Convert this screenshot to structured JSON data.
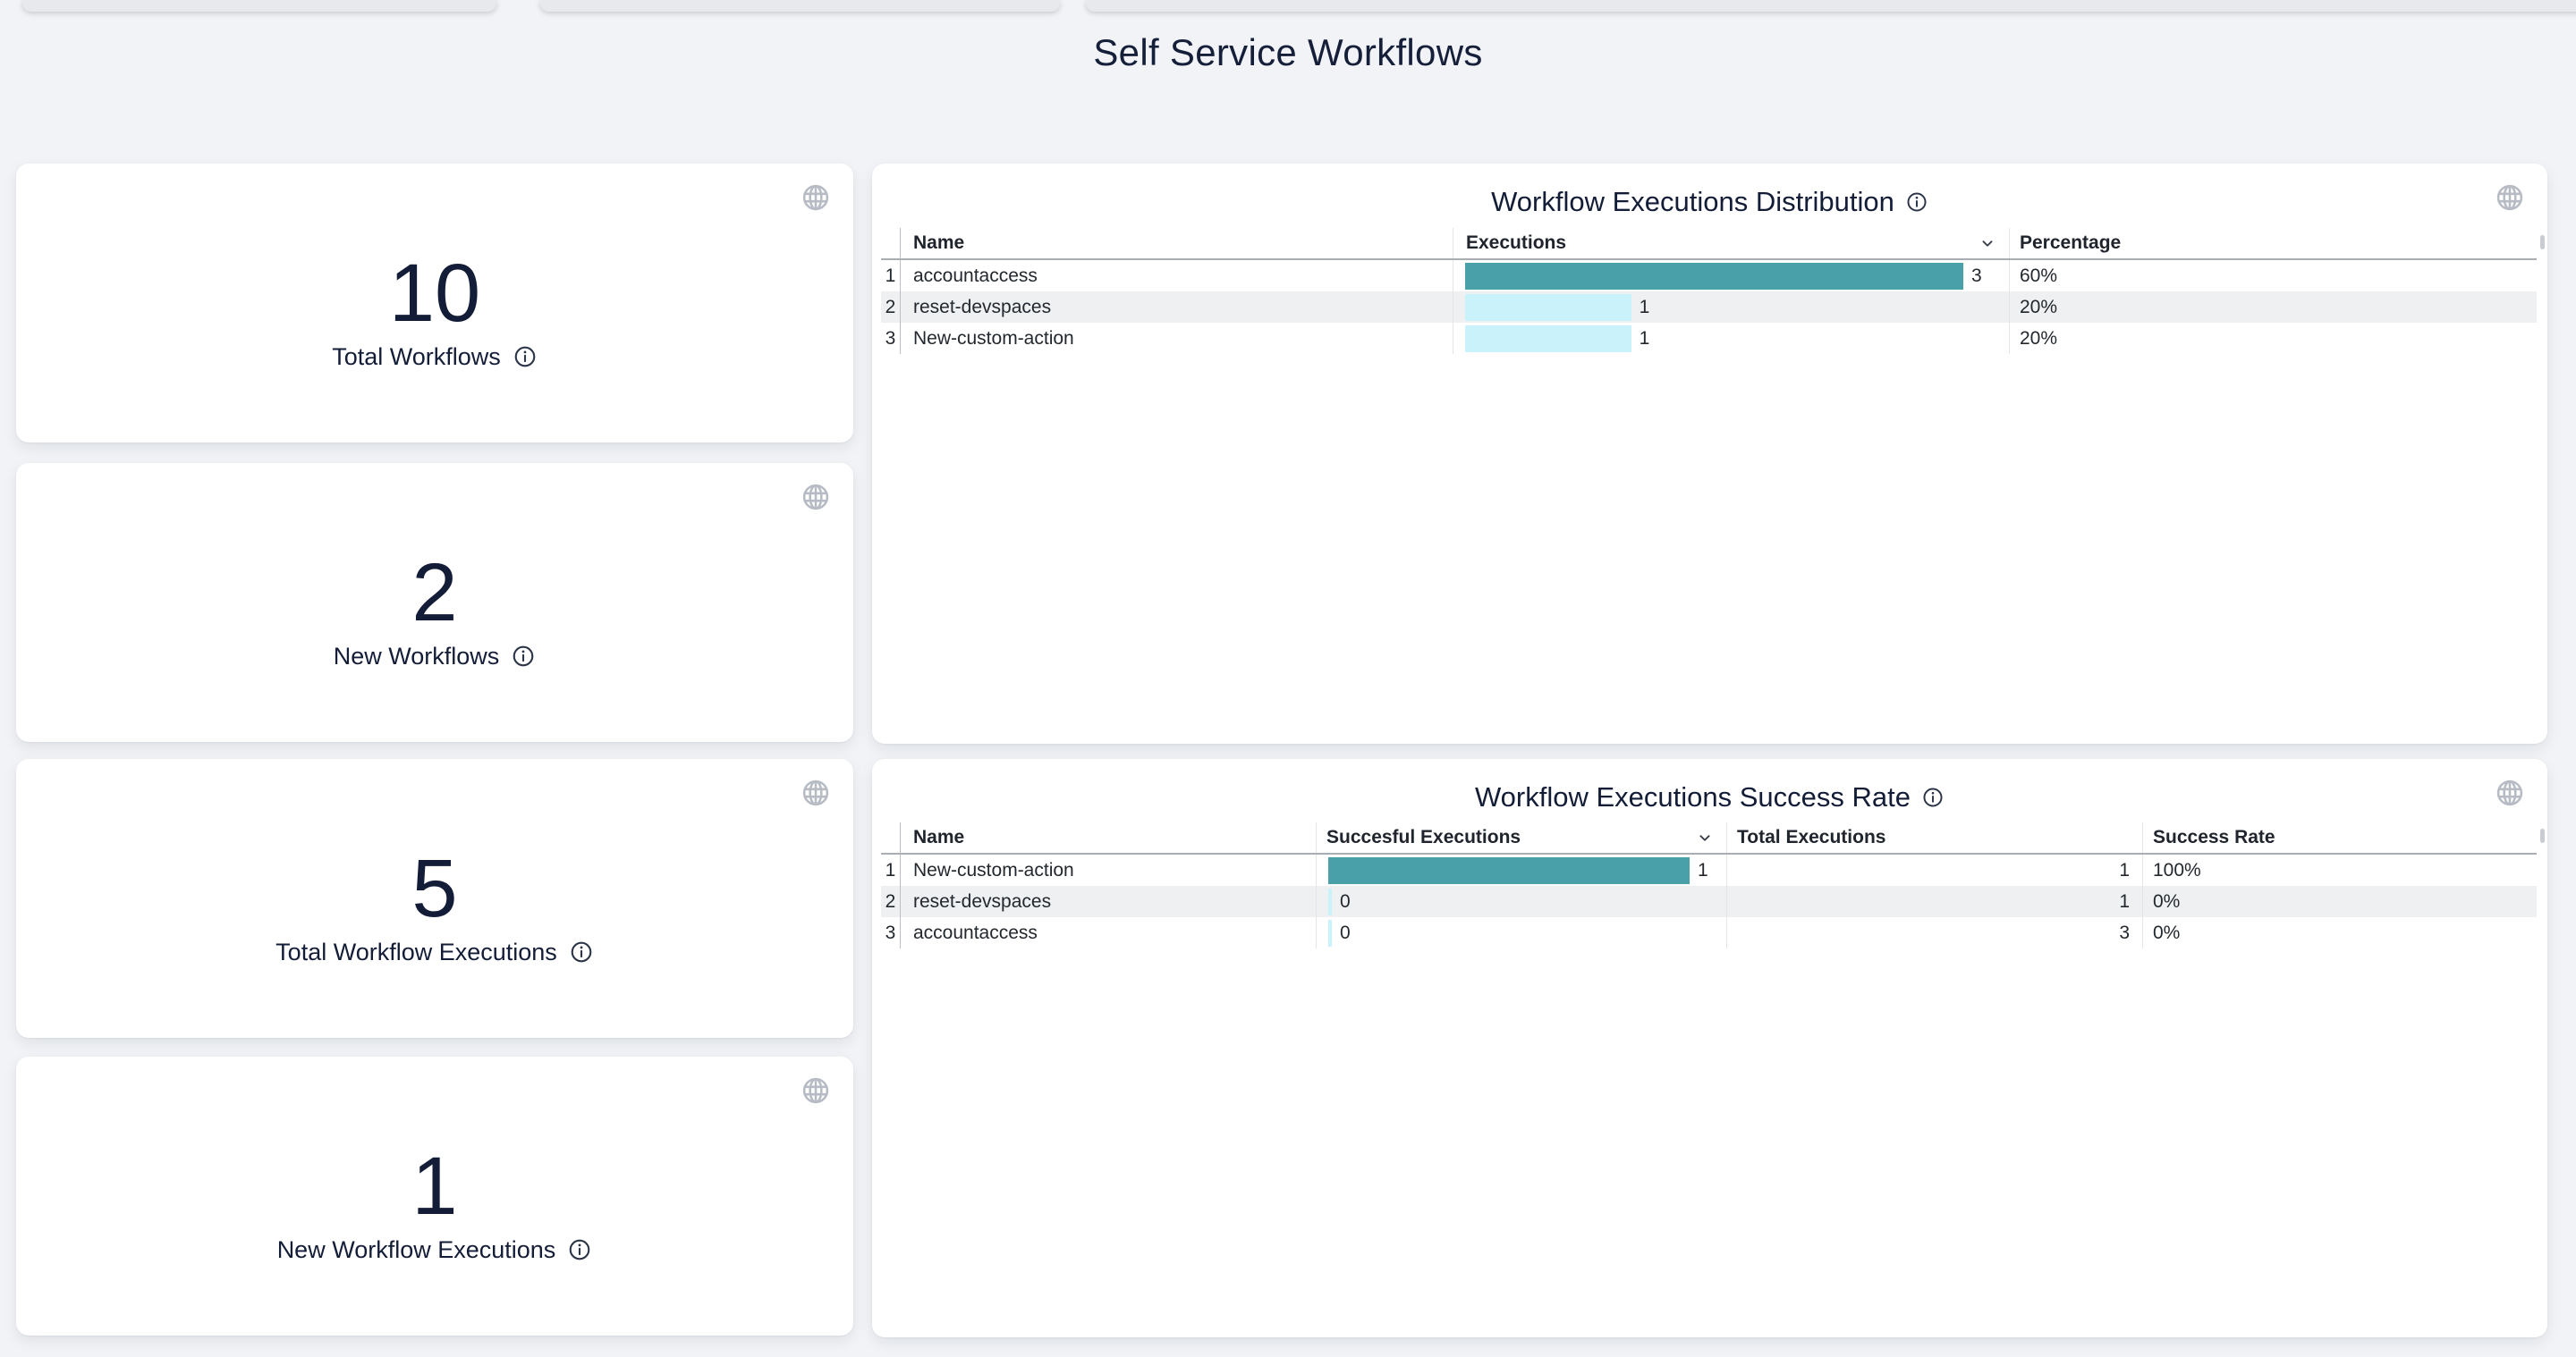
{
  "page": {
    "title": "Self Service Workflows"
  },
  "stat_cards": [
    {
      "value": "10",
      "label": "Total Workflows"
    },
    {
      "value": "2",
      "label": "New Workflows"
    },
    {
      "value": "5",
      "label": "Total Workflow Executions"
    },
    {
      "value": "1",
      "label": "New Workflow Executions"
    }
  ],
  "colors": {
    "bar_primary": "#4AA0A8",
    "bar_secondary": "#C9F2FA",
    "accent_text": "#141D38",
    "page_background": "#F1F3F6",
    "row_stripe": "#EEF0F1"
  },
  "chart_data": [
    {
      "type": "table",
      "title": "Workflow Executions Distribution",
      "columns": {
        "name": "Name",
        "bar": "Executions",
        "percentage": "Percentage"
      },
      "sort_indicator_column": "Executions",
      "max_value": 3,
      "rows": [
        {
          "num": "1",
          "name": "accountaccess",
          "value": 3,
          "value_label": "3",
          "percentage": "60%"
        },
        {
          "num": "2",
          "name": "reset-devspaces",
          "value": 1,
          "value_label": "1",
          "percentage": "20%"
        },
        {
          "num": "3",
          "name": "New-custom-action",
          "value": 1,
          "value_label": "1",
          "percentage": "20%"
        }
      ]
    },
    {
      "type": "table",
      "title": "Workflow Executions Success Rate",
      "columns": {
        "name": "Name",
        "bar": "Succesful Executions",
        "total": "Total Executions",
        "rate": "Success Rate"
      },
      "sort_indicator_column": "Succesful Executions",
      "max_value": 1,
      "rows": [
        {
          "num": "1",
          "name": "New-custom-action",
          "value": 1,
          "value_label": "1",
          "total": "1",
          "rate": "100%"
        },
        {
          "num": "2",
          "name": "reset-devspaces",
          "value": 0,
          "value_label": "0",
          "total": "1",
          "rate": "0%"
        },
        {
          "num": "3",
          "name": "accountaccess",
          "value": 0,
          "value_label": "0",
          "total": "3",
          "rate": "0%"
        }
      ]
    }
  ]
}
